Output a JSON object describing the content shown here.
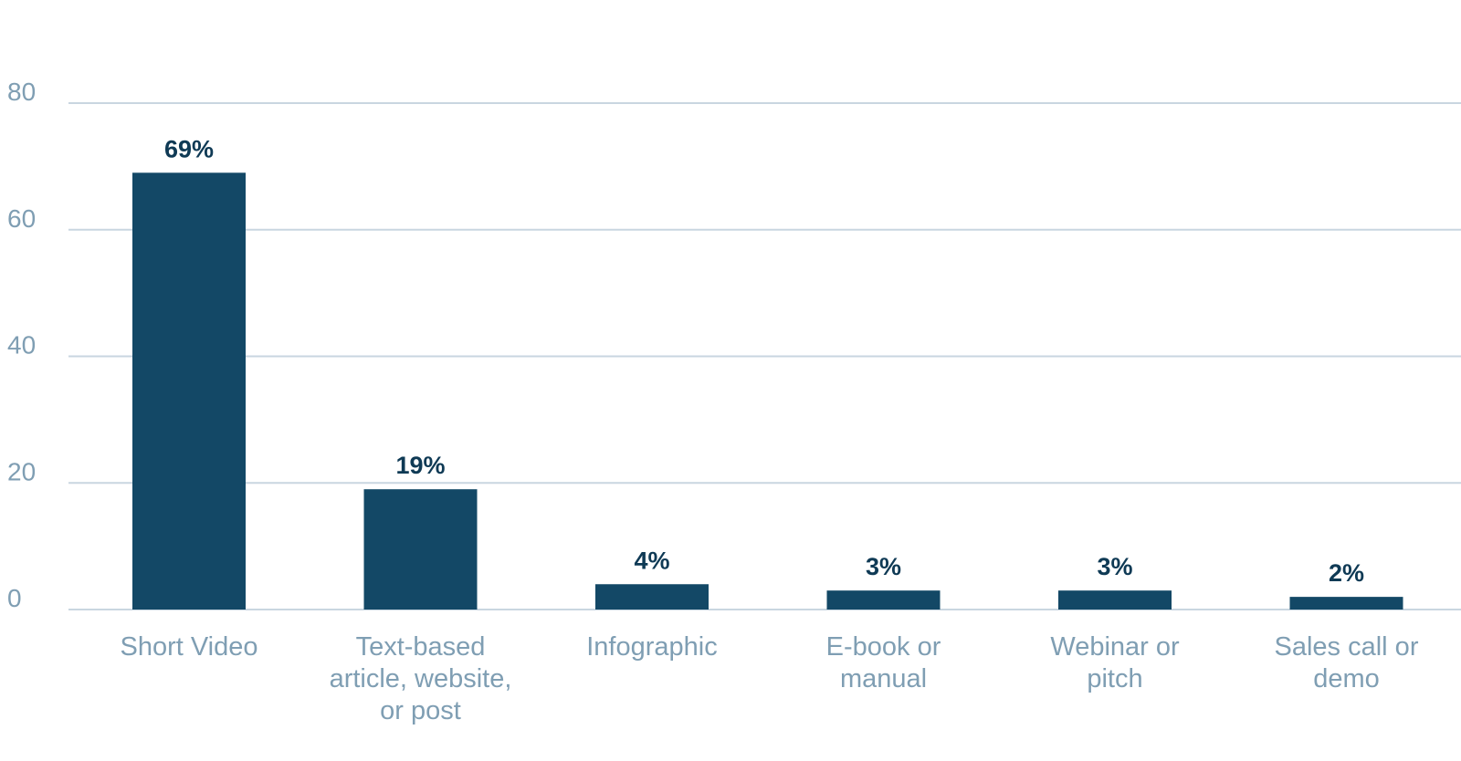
{
  "chart_data": {
    "type": "bar",
    "title": "",
    "xlabel": "",
    "ylabel": "",
    "ylim": [
      0,
      80
    ],
    "yticks": [
      0,
      20,
      40,
      60,
      80
    ],
    "grid": true,
    "categories": [
      [
        "Short Video"
      ],
      [
        "Text-based",
        "article, website,",
        "or post"
      ],
      [
        "Infographic"
      ],
      [
        "E-book or",
        "manual"
      ],
      [
        "Webinar or",
        "pitch"
      ],
      [
        "Sales call or",
        "demo"
      ]
    ],
    "values": [
      69,
      19,
      4,
      3,
      3,
      2
    ],
    "data_labels": [
      "69%",
      "19%",
      "4%",
      "3%",
      "3%",
      "2%"
    ]
  },
  "colors": {
    "bar": "#134866",
    "value_label": "#0f3a55",
    "axis_text": "#7f9eb3",
    "grid": "#c9d6e0"
  }
}
